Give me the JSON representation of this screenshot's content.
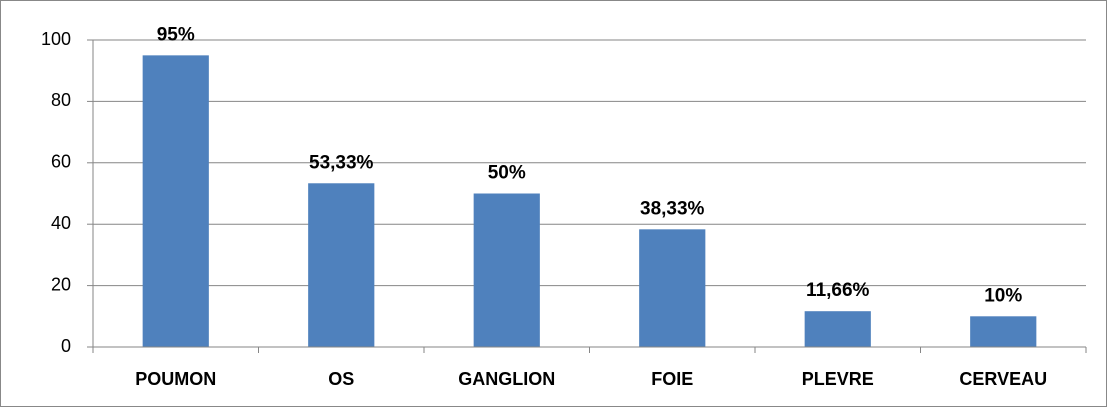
{
  "chart_data": {
    "type": "bar",
    "categories": [
      "POUMON",
      "OS",
      "GANGLION",
      "FOIE",
      "PLEVRE",
      "CERVEAU"
    ],
    "values": [
      95,
      53.33,
      50,
      38.33,
      11.66,
      10
    ],
    "value_labels": [
      "95%",
      "53,33%",
      "50%",
      "38,33%",
      "11,66%",
      "10%"
    ],
    "color": "#4f81bd",
    "ylim": [
      0,
      100
    ],
    "yticks": [
      0,
      20,
      40,
      60,
      80,
      100
    ],
    "grid": true
  }
}
